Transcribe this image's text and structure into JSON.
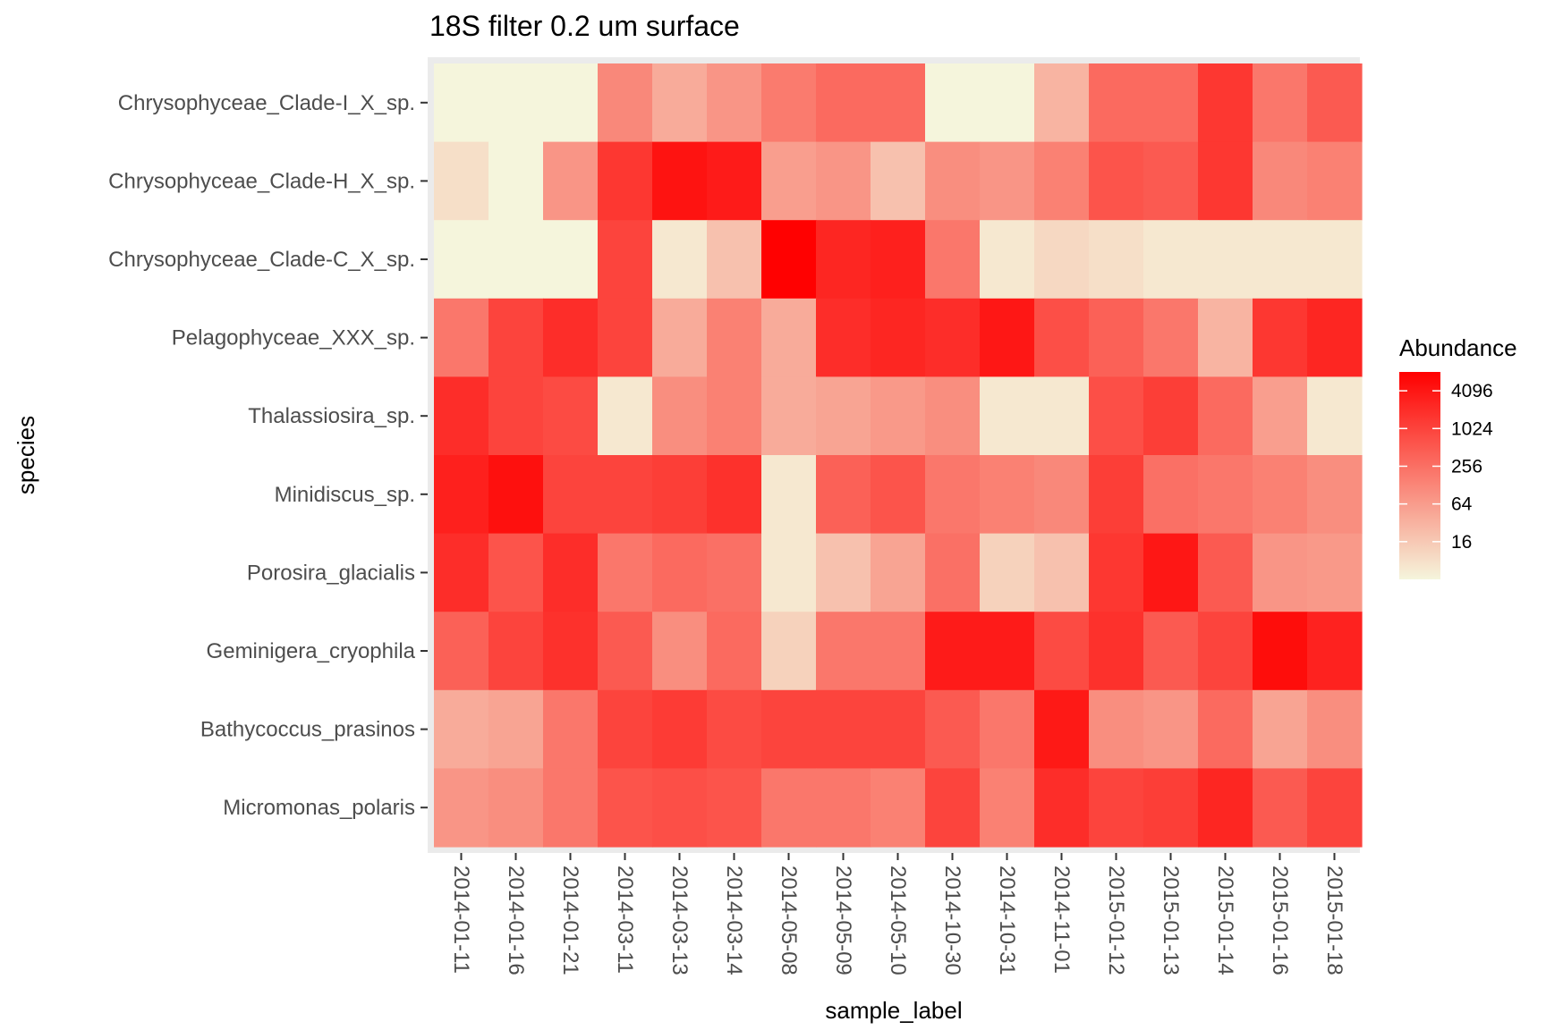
{
  "chart_data": {
    "type": "heatmap",
    "title": "18S filter 0.2 um surface",
    "xlabel": "sample_label",
    "ylabel": "species",
    "x": [
      "2014-01-11",
      "2014-01-16",
      "2014-01-21",
      "2014-03-11",
      "2014-03-13",
      "2014-03-14",
      "2014-05-08",
      "2014-05-09",
      "2014-05-10",
      "2014-10-30",
      "2014-10-31",
      "2014-11-01",
      "2015-01-12",
      "2015-01-13",
      "2015-01-14",
      "2015-01-16",
      "2015-01-18"
    ],
    "y": [
      "Chrysophyceae_Clade-I_X_sp.",
      "Chrysophyceae_Clade-H_X_sp.",
      "Chrysophyceae_Clade-C_X_sp.",
      "Pelagophyceae_XXX_sp.",
      "Thalassiosira_sp.",
      "Minidiscus_sp.",
      "Porosira_glacialis",
      "Geminigera_cryophila",
      "Bathycoccus_prasinos",
      "Micromonas_polaris"
    ],
    "values": [
      [
        4,
        4,
        4,
        120,
        40,
        80,
        180,
        300,
        300,
        4,
        4,
        30,
        300,
        300,
        1500,
        200,
        500
      ],
      [
        8,
        4,
        80,
        1500,
        4500,
        3500,
        60,
        80,
        20,
        100,
        80,
        150,
        600,
        500,
        1500,
        120,
        150
      ],
      [
        4,
        4,
        4,
        1000,
        6,
        20,
        8000,
        2500,
        3000,
        200,
        6,
        10,
        8,
        6,
        6,
        6,
        6
      ],
      [
        200,
        1000,
        2000,
        1000,
        40,
        150,
        40,
        2000,
        2500,
        2000,
        4000,
        700,
        400,
        200,
        30,
        1500,
        2500
      ],
      [
        2000,
        1000,
        800,
        6,
        100,
        150,
        40,
        50,
        70,
        100,
        6,
        6,
        700,
        1200,
        300,
        60,
        6
      ],
      [
        3000,
        5000,
        1000,
        1000,
        1200,
        1800,
        6,
        400,
        600,
        200,
        150,
        120,
        1200,
        250,
        200,
        150,
        100
      ],
      [
        2000,
        600,
        2000,
        200,
        300,
        250,
        6,
        20,
        50,
        250,
        12,
        20,
        1500,
        4000,
        500,
        80,
        70
      ],
      [
        400,
        1000,
        1800,
        500,
        100,
        300,
        12,
        200,
        200,
        3500,
        3500,
        800,
        1800,
        500,
        1000,
        5500,
        2800
      ],
      [
        40,
        50,
        200,
        1000,
        1300,
        800,
        1000,
        1000,
        1000,
        500,
        200,
        3800,
        100,
        80,
        300,
        50,
        100
      ],
      [
        80,
        100,
        200,
        600,
        700,
        600,
        200,
        200,
        150,
        1000,
        150,
        2000,
        1000,
        1200,
        2500,
        500,
        1000
      ]
    ],
    "color_scale": {
      "scale": "log2",
      "low": "#f5f5dc",
      "high": "#ff0000",
      "domain": [
        4,
        8192
      ]
    },
    "legend": {
      "title": "Abundance",
      "ticks": [
        16,
        64,
        256,
        1024,
        4096
      ],
      "tick_labels": [
        "16",
        "64",
        "256",
        "1024",
        "4096"
      ],
      "position": "right"
    },
    "grid": true
  }
}
